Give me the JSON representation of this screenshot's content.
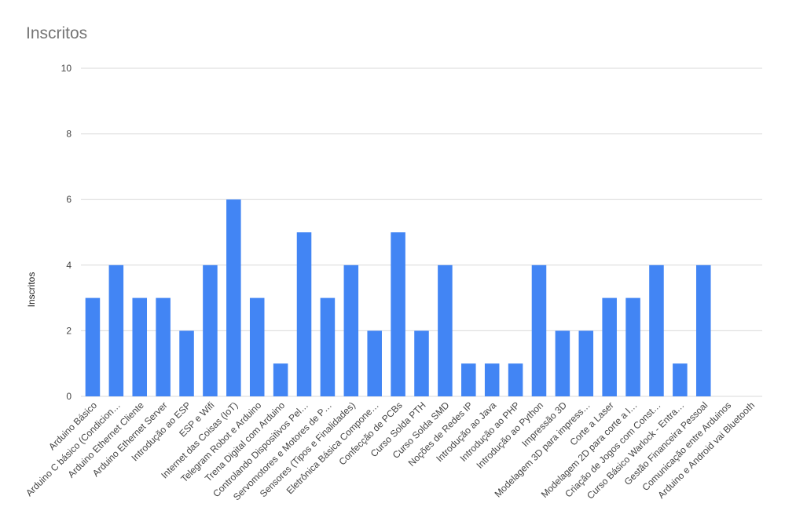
{
  "chart_data": {
    "type": "bar",
    "title": "Inscritos",
    "xlabel": "",
    "ylabel": "Inscritos",
    "ylim": [
      0,
      10
    ],
    "yticks": [
      "0",
      "2",
      "4",
      "6",
      "8",
      "10"
    ],
    "grid": true,
    "legend": "none",
    "bar_color": "#4285f4",
    "categories": [
      "Arduino Básico",
      "Arduino C básico (Condicion…",
      "Arduino Ethernet Cliente",
      "Arduino Ethernet Server",
      "Introdução ao ESP",
      "ESP e Wifi",
      "Internet das Coisas (IoT)",
      "Telegram Robot e Arduino",
      "Trena Digital com Arduino",
      "Controlando Dispositivos Pel…",
      "Servomotores e Motores de P…",
      "Sensores (Tipos e Finalidades)",
      "Eletrônica Básica Compone…",
      "Confecção de PCBs",
      "Curso Solda PTH",
      "Curso Solda SMD",
      "Noções de Redes IP",
      "Introdução ao Java",
      "Introdução ao PHP",
      "Introdução ao Python",
      "Impressão 3D",
      "Modelagem 3D para impress…",
      "Corte a Laser",
      "Modelagem 2D para corte a l…",
      "Criação de Jogos com Const…",
      "Curso Básico Warlock - Entra…",
      "Gestão Financeira Pessoal",
      "Comunicação entre Arduinos",
      "Arduino e Android vai Bluetooth"
    ],
    "values": [
      3,
      4,
      3,
      3,
      2,
      4,
      6,
      3,
      1,
      5,
      3,
      4,
      2,
      5,
      2,
      4,
      1,
      1,
      1,
      4,
      2,
      2,
      3,
      3,
      4,
      1,
      4,
      0,
      0
    ]
  }
}
